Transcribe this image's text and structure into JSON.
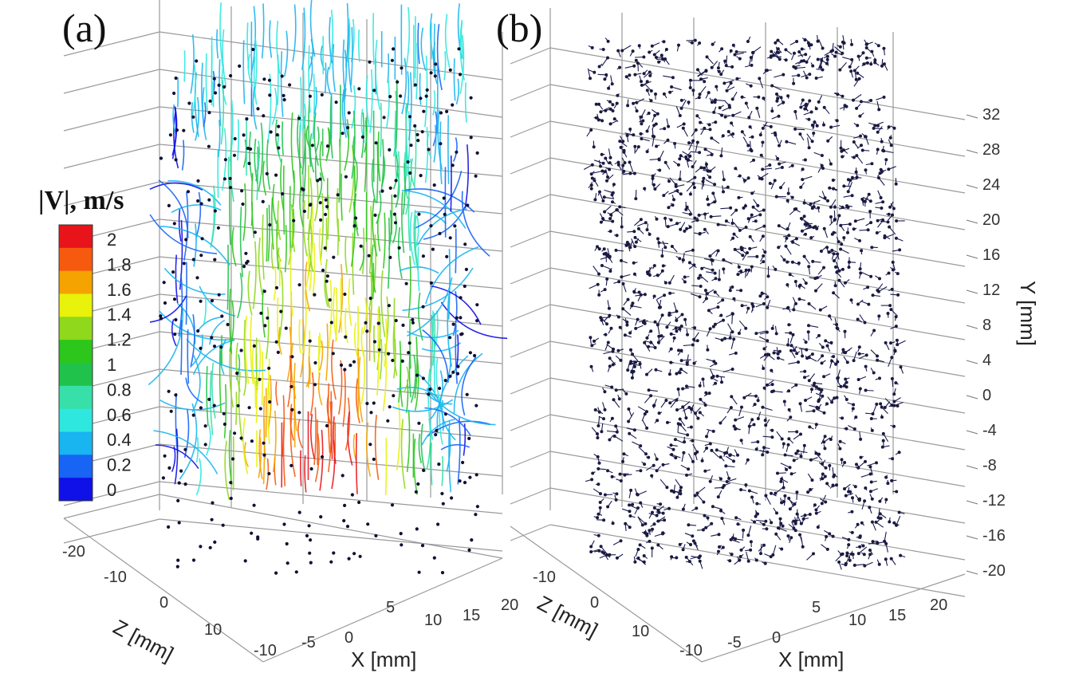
{
  "chart_data": [
    {
      "panel": "(a)",
      "type": "scatter",
      "subtype": "3d-velocity-pathlines-colored",
      "colorbar": {
        "title": "|V|, m/s",
        "ticks": [
          "2",
          "1.8",
          "1.6",
          "1.4",
          "1.2",
          "1",
          "0.8",
          "0.6",
          "0.4",
          "0.2",
          "0"
        ],
        "range": [
          0,
          2
        ],
        "colors": [
          "#e8141a",
          "#f55a0f",
          "#f5a300",
          "#e8f20a",
          "#8fd81c",
          "#2cc61d",
          "#20c24c",
          "#36e0a8",
          "#2ee8df",
          "#19b5f0",
          "#1764f5",
          "#1010e8"
        ]
      },
      "axes": {
        "z": {
          "label": "Z [mm]",
          "ticks": [
            "-20",
            "-10",
            "0",
            "10"
          ],
          "range": [
            -20,
            10
          ]
        },
        "x": {
          "label": "X [mm]",
          "ticks": [
            "-10",
            "-5",
            "0",
            "5",
            "10",
            "15",
            "20"
          ],
          "range": [
            -10,
            20
          ]
        }
      },
      "description_of_values": "Jet core speed about 1.6-1.9 m/s along centerline, decaying to 0.2-0.6 m/s at top and in side recirculation vortices"
    },
    {
      "panel": "(b)",
      "type": "scatter",
      "subtype": "3d-particle-tracks",
      "axes": {
        "z": {
          "label": "Z [mm]",
          "ticks": [
            "-10",
            "0",
            "10"
          ],
          "range": [
            -10,
            10
          ]
        },
        "x": {
          "label": "X [mm]",
          "ticks": [
            "-10",
            "-5",
            "0",
            "5",
            "10",
            "15",
            "20"
          ],
          "range": [
            -10,
            20
          ]
        },
        "y": {
          "label": "Y [mm]",
          "ticks": [
            "32",
            "28",
            "24",
            "20",
            "16",
            "12",
            "8",
            "4",
            "0",
            "-4",
            "-8",
            "-12",
            "-16",
            "-20"
          ],
          "range": [
            -20,
            32
          ]
        }
      },
      "marker_color": "#1a1a40"
    }
  ]
}
